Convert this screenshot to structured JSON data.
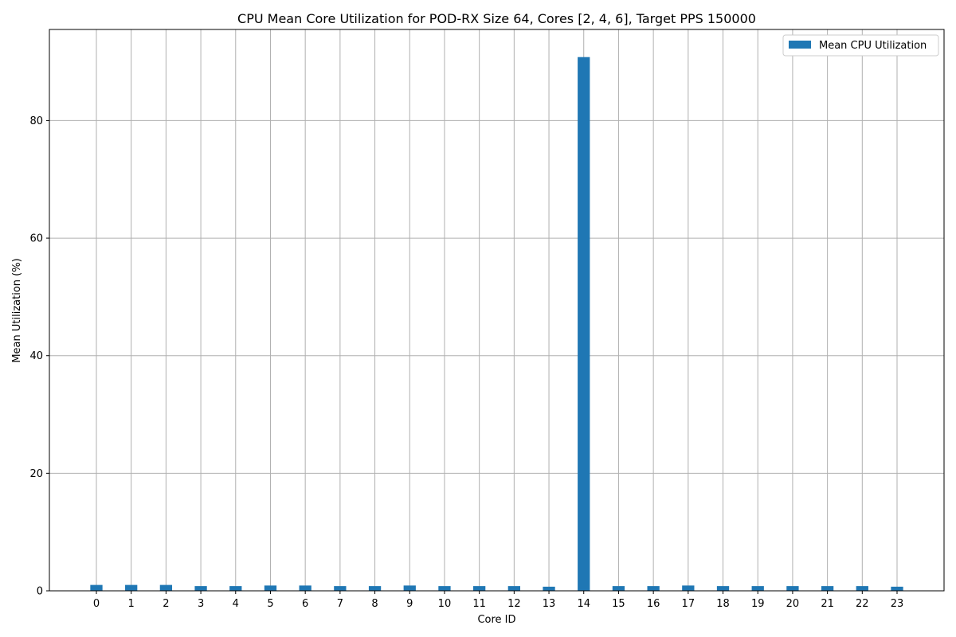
{
  "chart_data": {
    "type": "bar",
    "title": "CPU Mean Core Utilization for POD-RX Size 64, Cores [2, 4, 6], Target PPS 150000",
    "xlabel": "Core ID",
    "ylabel": "Mean Utilization (%)",
    "categories": [
      "0",
      "1",
      "2",
      "3",
      "4",
      "5",
      "6",
      "7",
      "8",
      "9",
      "10",
      "11",
      "12",
      "13",
      "14",
      "15",
      "16",
      "17",
      "18",
      "19",
      "20",
      "21",
      "22",
      "23"
    ],
    "series": [
      {
        "name": "Mean CPU Utilization",
        "values": [
          1.0,
          1.0,
          1.0,
          0.8,
          0.8,
          0.9,
          0.9,
          0.8,
          0.8,
          0.9,
          0.8,
          0.8,
          0.8,
          0.7,
          90.8,
          0.8,
          0.8,
          0.9,
          0.8,
          0.8,
          0.8,
          0.8,
          0.8,
          0.7
        ],
        "color": "#1f77b4"
      }
    ],
    "ylim": [
      0,
      95.5
    ],
    "yticks": [
      0,
      20,
      40,
      60,
      80
    ],
    "grid": true,
    "legend": {
      "position": "top-right"
    }
  }
}
